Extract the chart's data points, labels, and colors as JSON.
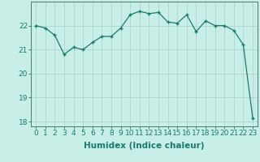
{
  "xlabel": "Humidex (Indice chaleur)",
  "ylabel": "",
  "x_values": [
    0,
    1,
    2,
    3,
    4,
    5,
    6,
    7,
    8,
    9,
    10,
    11,
    12,
    13,
    14,
    15,
    16,
    17,
    18,
    19,
    20,
    21,
    22,
    23
  ],
  "y_values": [
    22.0,
    21.9,
    21.6,
    20.8,
    21.1,
    21.0,
    21.3,
    21.55,
    21.55,
    21.9,
    22.45,
    22.6,
    22.5,
    22.55,
    22.15,
    22.1,
    22.45,
    21.75,
    22.2,
    22.0,
    22.0,
    21.8,
    21.2,
    18.15
  ],
  "ylim_min": 17.8,
  "ylim_max": 23.0,
  "xlim_min": -0.5,
  "xlim_max": 23.5,
  "line_color": "#1a7a6e",
  "marker": "+",
  "bg_color": "#c8eee8",
  "plot_bg_color": "#c8eee8",
  "grid_color": "#b0d4ce",
  "spine_color": "#4a7a74",
  "tick_label_fontsize": 6.5,
  "xlabel_fontsize": 7.5,
  "yticks": [
    18,
    19,
    20,
    21,
    22
  ],
  "xtick_labels": [
    "0",
    "1",
    "2",
    "3",
    "4",
    "5",
    "6",
    "7",
    "8",
    "9",
    "10",
    "11",
    "12",
    "13",
    "14",
    "15",
    "16",
    "17",
    "18",
    "19",
    "20",
    "21",
    "22",
    "23"
  ]
}
